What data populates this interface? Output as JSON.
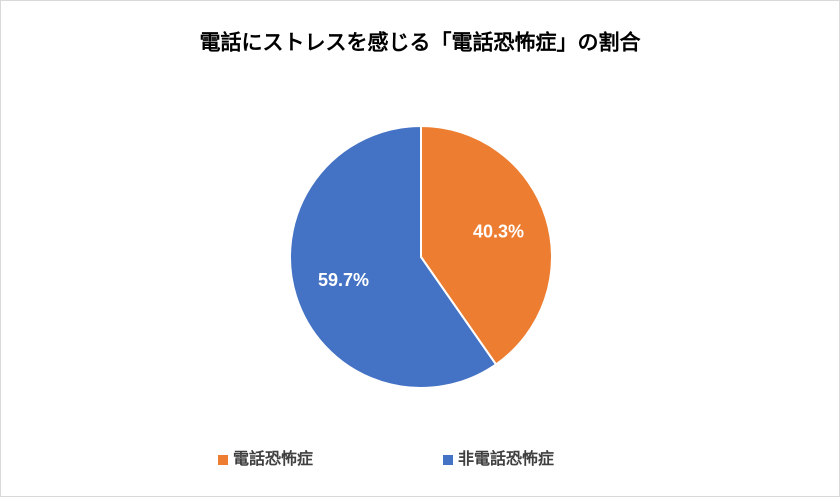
{
  "chart_data": {
    "type": "pie",
    "title": "電話にストレスを感じる「電話恐怖症」の割合",
    "categories": [
      "電話恐怖症",
      "非電話恐怖症"
    ],
    "values": [
      40.3,
      59.7
    ],
    "value_labels": [
      "40.3%",
      "59.7%"
    ],
    "colors": [
      "#ed7d31",
      "#4472c4"
    ],
    "legend": "bottom"
  }
}
